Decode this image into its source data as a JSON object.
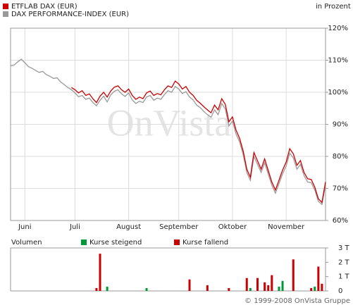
{
  "chart_data": [
    {
      "type": "line",
      "y_axis_label": "in Prozent",
      "watermark": "OnVista",
      "ylim": [
        60,
        120
      ],
      "yticks": [
        {
          "value": 60,
          "label": "60%"
        },
        {
          "value": 70,
          "label": "70%"
        },
        {
          "value": 80,
          "label": "80%"
        },
        {
          "value": 90,
          "label": "90%"
        },
        {
          "value": 100,
          "label": "100%"
        },
        {
          "value": 110,
          "label": "110%"
        },
        {
          "value": 120,
          "label": "120%"
        }
      ],
      "xlim": [
        0,
        88
      ],
      "xticks": [
        {
          "value": 4,
          "label": "Juni"
        },
        {
          "value": 18,
          "label": "Juli"
        },
        {
          "value": 33,
          "label": "August"
        },
        {
          "value": 47,
          "label": "September"
        },
        {
          "value": 62,
          "label": "Oktober"
        },
        {
          "value": 77,
          "label": "November"
        }
      ],
      "grid": true,
      "series": [
        {
          "name": "ETFLAB DAX (EUR)",
          "color": "#cc0000",
          "values": [
            null,
            null,
            null,
            null,
            null,
            null,
            null,
            null,
            null,
            null,
            null,
            null,
            null,
            null,
            null,
            null,
            null,
            101.5,
            100.8,
            99.8,
            100.5,
            99.0,
            99.5,
            98.0,
            96.8,
            98.8,
            100.0,
            98.5,
            100.4,
            101.6,
            102.0,
            100.8,
            100.0,
            101.0,
            99.0,
            97.8,
            98.5,
            98.0,
            99.8,
            100.4,
            99.0,
            99.6,
            99.2,
            100.8,
            102.0,
            101.5,
            103.5,
            102.6,
            101.0,
            101.8,
            100.0,
            99.0,
            97.5,
            96.6,
            95.5,
            94.5,
            93.6,
            96.0,
            94.5,
            98.0,
            96.2,
            90.8,
            92.3,
            88.2,
            85.6,
            81.6,
            76.0,
            73.5,
            81.2,
            78.6,
            76.0,
            79.2,
            75.6,
            72.0,
            69.5,
            72.6,
            75.7,
            78.2,
            82.4,
            80.8,
            77.2,
            78.7,
            75.0,
            73.0,
            72.8,
            70.4,
            66.8,
            65.6,
            72.0
          ]
        },
        {
          "name": "DAX PERFORMANCE-INDEX (EUR)",
          "color": "#999999",
          "values": [
            108.3,
            108.5,
            109.5,
            110.3,
            109.2,
            108.0,
            107.5,
            106.8,
            106.2,
            106.5,
            105.5,
            105.0,
            104.3,
            104.5,
            103.2,
            102.4,
            101.5,
            100.8,
            99.8,
            98.6,
            99.0,
            97.8,
            98.2,
            96.8,
            95.8,
            97.5,
            98.8,
            97.0,
            99.2,
            100.3,
            100.8,
            99.5,
            98.7,
            99.8,
            97.6,
            96.5,
            97.2,
            96.8,
            98.5,
            99.0,
            97.5,
            98.2,
            97.8,
            99.3,
            100.5,
            100.0,
            101.8,
            101.0,
            99.6,
            100.2,
            98.5,
            97.6,
            96.0,
            95.2,
            94.0,
            93.0,
            92.2,
            94.5,
            93.0,
            96.5,
            94.8,
            89.5,
            91.0,
            87.0,
            84.5,
            80.5,
            75.0,
            72.5,
            80.0,
            77.5,
            75.0,
            78.0,
            74.5,
            71.0,
            68.5,
            71.5,
            74.5,
            77.0,
            81.0,
            79.5,
            76.0,
            77.5,
            74.0,
            72.0,
            71.8,
            69.5,
            66.0,
            65.0,
            71.0
          ]
        }
      ]
    },
    {
      "type": "bar",
      "title": "Volumen",
      "xlim": [
        0,
        88
      ],
      "x": [
        24,
        25,
        27,
        38,
        50,
        55,
        61,
        66,
        67,
        69,
        71,
        72,
        73,
        75,
        76,
        79,
        84,
        85,
        86,
        87
      ],
      "ylim": [
        0,
        3000
      ],
      "yticks": [
        0,
        {
          "value": 1000,
          "label": "1 T"
        },
        {
          "value": 2000,
          "label": "2 T"
        },
        {
          "value": 3000,
          "label": "3 T"
        }
      ],
      "series": [
        {
          "name": "Kurse steigend",
          "color": "#009933",
          "values": [
            null,
            null,
            300,
            200,
            null,
            null,
            null,
            null,
            200,
            null,
            null,
            null,
            null,
            300,
            700,
            null,
            null,
            300,
            null,
            null
          ]
        },
        {
          "name": "Kurse fallend",
          "color": "#cc0000",
          "values": [
            200,
            2600,
            null,
            null,
            800,
            400,
            200,
            900,
            null,
            900,
            600,
            400,
            1100,
            null,
            null,
            2200,
            200,
            null,
            1700,
            500
          ]
        }
      ]
    }
  ],
  "footer": "© 1999-2008 OnVista Gruppe"
}
